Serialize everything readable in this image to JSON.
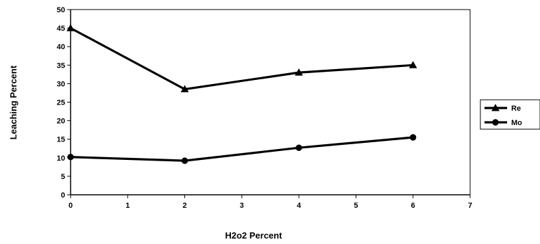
{
  "chart_data": {
    "type": "line",
    "xlabel": "H2o2 Percent",
    "ylabel": "Leaching Percent",
    "xlim": [
      0,
      7
    ],
    "ylim": [
      0,
      50
    ],
    "xticks": [
      "0",
      "1",
      "2",
      "3",
      "4",
      "5",
      "6",
      "7"
    ],
    "yticks": [
      "0",
      "5",
      "10",
      "15",
      "20",
      "25",
      "30",
      "35",
      "40",
      "45",
      "50"
    ],
    "grid": false,
    "legend_position": "right",
    "series": [
      {
        "name": "Re",
        "marker": "triangle",
        "color": "#000000",
        "x": [
          0,
          2,
          4,
          6
        ],
        "y": [
          45,
          28.5,
          33,
          35
        ]
      },
      {
        "name": "Mo",
        "marker": "circle",
        "color": "#000000",
        "x": [
          0,
          2,
          4,
          6
        ],
        "y": [
          10.2,
          9.2,
          12.7,
          15.5
        ]
      }
    ]
  }
}
